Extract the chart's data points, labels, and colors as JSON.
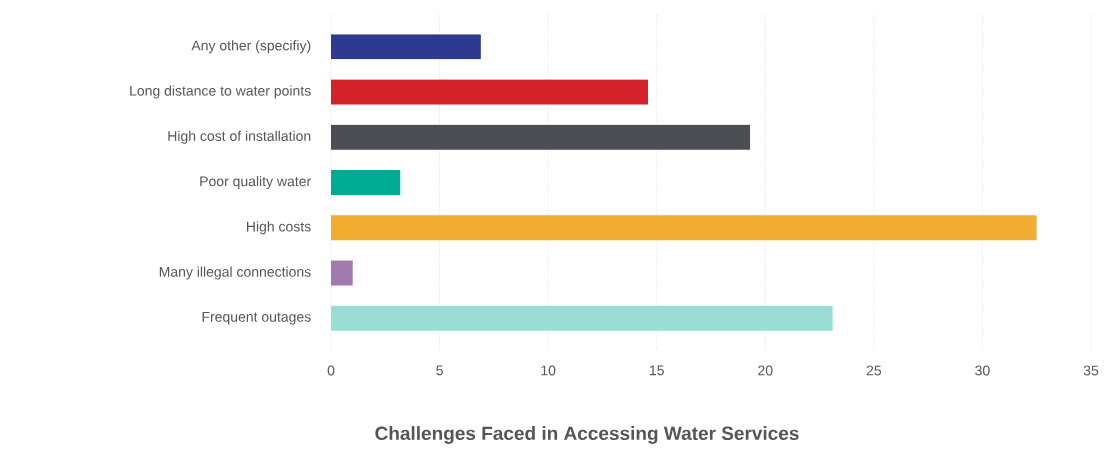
{
  "chart_data": {
    "type": "bar",
    "orientation": "horizontal",
    "title": "Challenges Faced in Accessing Water Services",
    "categories": [
      "Any other (specifiy)",
      "Long distance to water points",
      "High cost of installation",
      "Poor quality water",
      "High costs",
      "Many illegal connections",
      "Frequent outages"
    ],
    "values": [
      6.9,
      14.6,
      19.3,
      3.2,
      32.5,
      1.0,
      23.1
    ],
    "colors": [
      "#2e3a8f",
      "#d4222b",
      "#4d4e53",
      "#00ab93",
      "#f2ad31",
      "#a37aad",
      "#98ded4"
    ],
    "xlim": [
      0,
      35
    ],
    "xticks": [
      0,
      5,
      10,
      15,
      20,
      25,
      30,
      35
    ],
    "grid": "x"
  }
}
